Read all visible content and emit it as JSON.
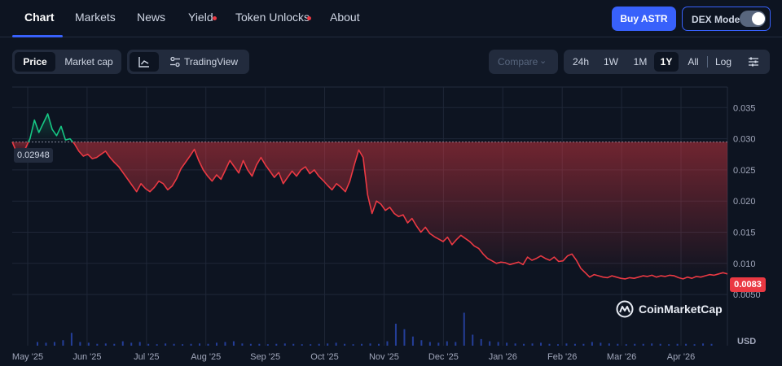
{
  "nav": {
    "tabs": [
      {
        "label": "Chart"
      },
      {
        "label": "Markets"
      },
      {
        "label": "News"
      },
      {
        "label": "Yield"
      },
      {
        "label": "Token Unlocks"
      },
      {
        "label": "About"
      }
    ],
    "buy_label": "Buy ASTR",
    "dex_label": "DEX Mode",
    "dex_enabled": false
  },
  "toolbar": {
    "price_label": "Price",
    "mcap_label": "Market cap",
    "tradingview_label": "TradingView",
    "compare_label": "Compare",
    "ranges": [
      "24h",
      "1W",
      "1M",
      "1Y",
      "All"
    ],
    "active_range": "1Y",
    "log_label": "Log"
  },
  "chart": {
    "open_label": "0.02948",
    "current_price_label": "0.0083",
    "watermark": "CoinMarketCap",
    "currency_label": "USD",
    "colors": {
      "up": "#16c784",
      "down": "#ea3943",
      "accent": "#3861fb"
    }
  },
  "chart_data": {
    "type": "line",
    "x_labels": [
      "May '25",
      "Jun '25",
      "Jul '25",
      "Aug '25",
      "Sep '25",
      "Oct '25",
      "Nov '25",
      "Dec '25",
      "Jan '26",
      "Feb '26",
      "Mar '26",
      "Apr '26"
    ],
    "y_ticks": [
      "0.035",
      "0.030",
      "0.025",
      "0.020",
      "0.015",
      "0.010",
      "0.0050"
    ],
    "y_tick_values": [
      0.035,
      0.03,
      0.025,
      0.02,
      0.015,
      0.01,
      0.005
    ],
    "ylim": [
      0,
      0.04
    ],
    "open_price": 0.02948,
    "current_price": 0.0083,
    "series": [
      {
        "values": [
          0.0295,
          0.0278,
          0.027,
          0.0285,
          0.03,
          0.033,
          0.031,
          0.0325,
          0.034,
          0.0315,
          0.0305,
          0.032,
          0.0298,
          0.03,
          0.0292,
          0.028,
          0.0272,
          0.0275,
          0.0268,
          0.027,
          0.0275,
          0.028,
          0.027,
          0.0262,
          0.0255,
          0.0245,
          0.0235,
          0.0225,
          0.0215,
          0.0228,
          0.022,
          0.0215,
          0.0222,
          0.0232,
          0.0228,
          0.0218,
          0.0224,
          0.0236,
          0.0252,
          0.0262,
          0.0272,
          0.0283,
          0.0265,
          0.025,
          0.024,
          0.0232,
          0.0242,
          0.0235,
          0.025,
          0.0265,
          0.0255,
          0.0245,
          0.0265,
          0.025,
          0.024,
          0.0258,
          0.027,
          0.0258,
          0.0248,
          0.0238,
          0.0246,
          0.0228,
          0.0238,
          0.0248,
          0.024,
          0.025,
          0.0255,
          0.0244,
          0.025,
          0.024,
          0.0233,
          0.0225,
          0.0218,
          0.0228,
          0.0222,
          0.0215,
          0.0232,
          0.0258,
          0.0282,
          0.027,
          0.021,
          0.018,
          0.02,
          0.0195,
          0.0185,
          0.019,
          0.018,
          0.0175,
          0.0178,
          0.0165,
          0.0172,
          0.016,
          0.015,
          0.0158,
          0.0148,
          0.0143,
          0.0139,
          0.0135,
          0.0142,
          0.013,
          0.0138,
          0.0145,
          0.014,
          0.0135,
          0.0128,
          0.0124,
          0.0115,
          0.0108,
          0.0104,
          0.01,
          0.0102,
          0.0101,
          0.0098,
          0.01,
          0.0102,
          0.0098,
          0.011,
          0.0105,
          0.0108,
          0.0112,
          0.0108,
          0.0105,
          0.011,
          0.0103,
          0.0104,
          0.0112,
          0.0115,
          0.0105,
          0.0092,
          0.0085,
          0.0078,
          0.0082,
          0.008,
          0.0078,
          0.0077,
          0.008,
          0.0078,
          0.0076,
          0.0075,
          0.0077,
          0.0076,
          0.0078,
          0.008,
          0.0079,
          0.0081,
          0.0078,
          0.008,
          0.0079,
          0.0081,
          0.008,
          0.0077,
          0.0075,
          0.0078,
          0.0076,
          0.0079,
          0.0078,
          0.008,
          0.0082,
          0.0081,
          0.0083,
          0.0085,
          0.0083
        ]
      }
    ],
    "volume": [
      0.1,
      0.08,
      0.1,
      0.15,
      0.35,
      0.1,
      0.08,
      0.05,
      0.06,
      0.05,
      0.12,
      0.08,
      0.1,
      0.05,
      0.04,
      0.06,
      0.05,
      0.04,
      0.05,
      0.06,
      0.05,
      0.08,
      0.1,
      0.12,
      0.06,
      0.05,
      0.05,
      0.04,
      0.05,
      0.06,
      0.05,
      0.04,
      0.04,
      0.05,
      0.06,
      0.08,
      0.05,
      0.04,
      0.05,
      0.06,
      0.05,
      0.12,
      0.6,
      0.45,
      0.25,
      0.15,
      0.1,
      0.08,
      0.12,
      0.1,
      0.9,
      0.3,
      0.18,
      0.12,
      0.1,
      0.08,
      0.06,
      0.05,
      0.06,
      0.08,
      0.05,
      0.04,
      0.06,
      0.05,
      0.05,
      0.1,
      0.08,
      0.06,
      0.05,
      0.04,
      0.05,
      0.05,
      0.06,
      0.05,
      0.04,
      0.05,
      0.05,
      0.04,
      0.06,
      0.05
    ],
    "grid": true
  }
}
